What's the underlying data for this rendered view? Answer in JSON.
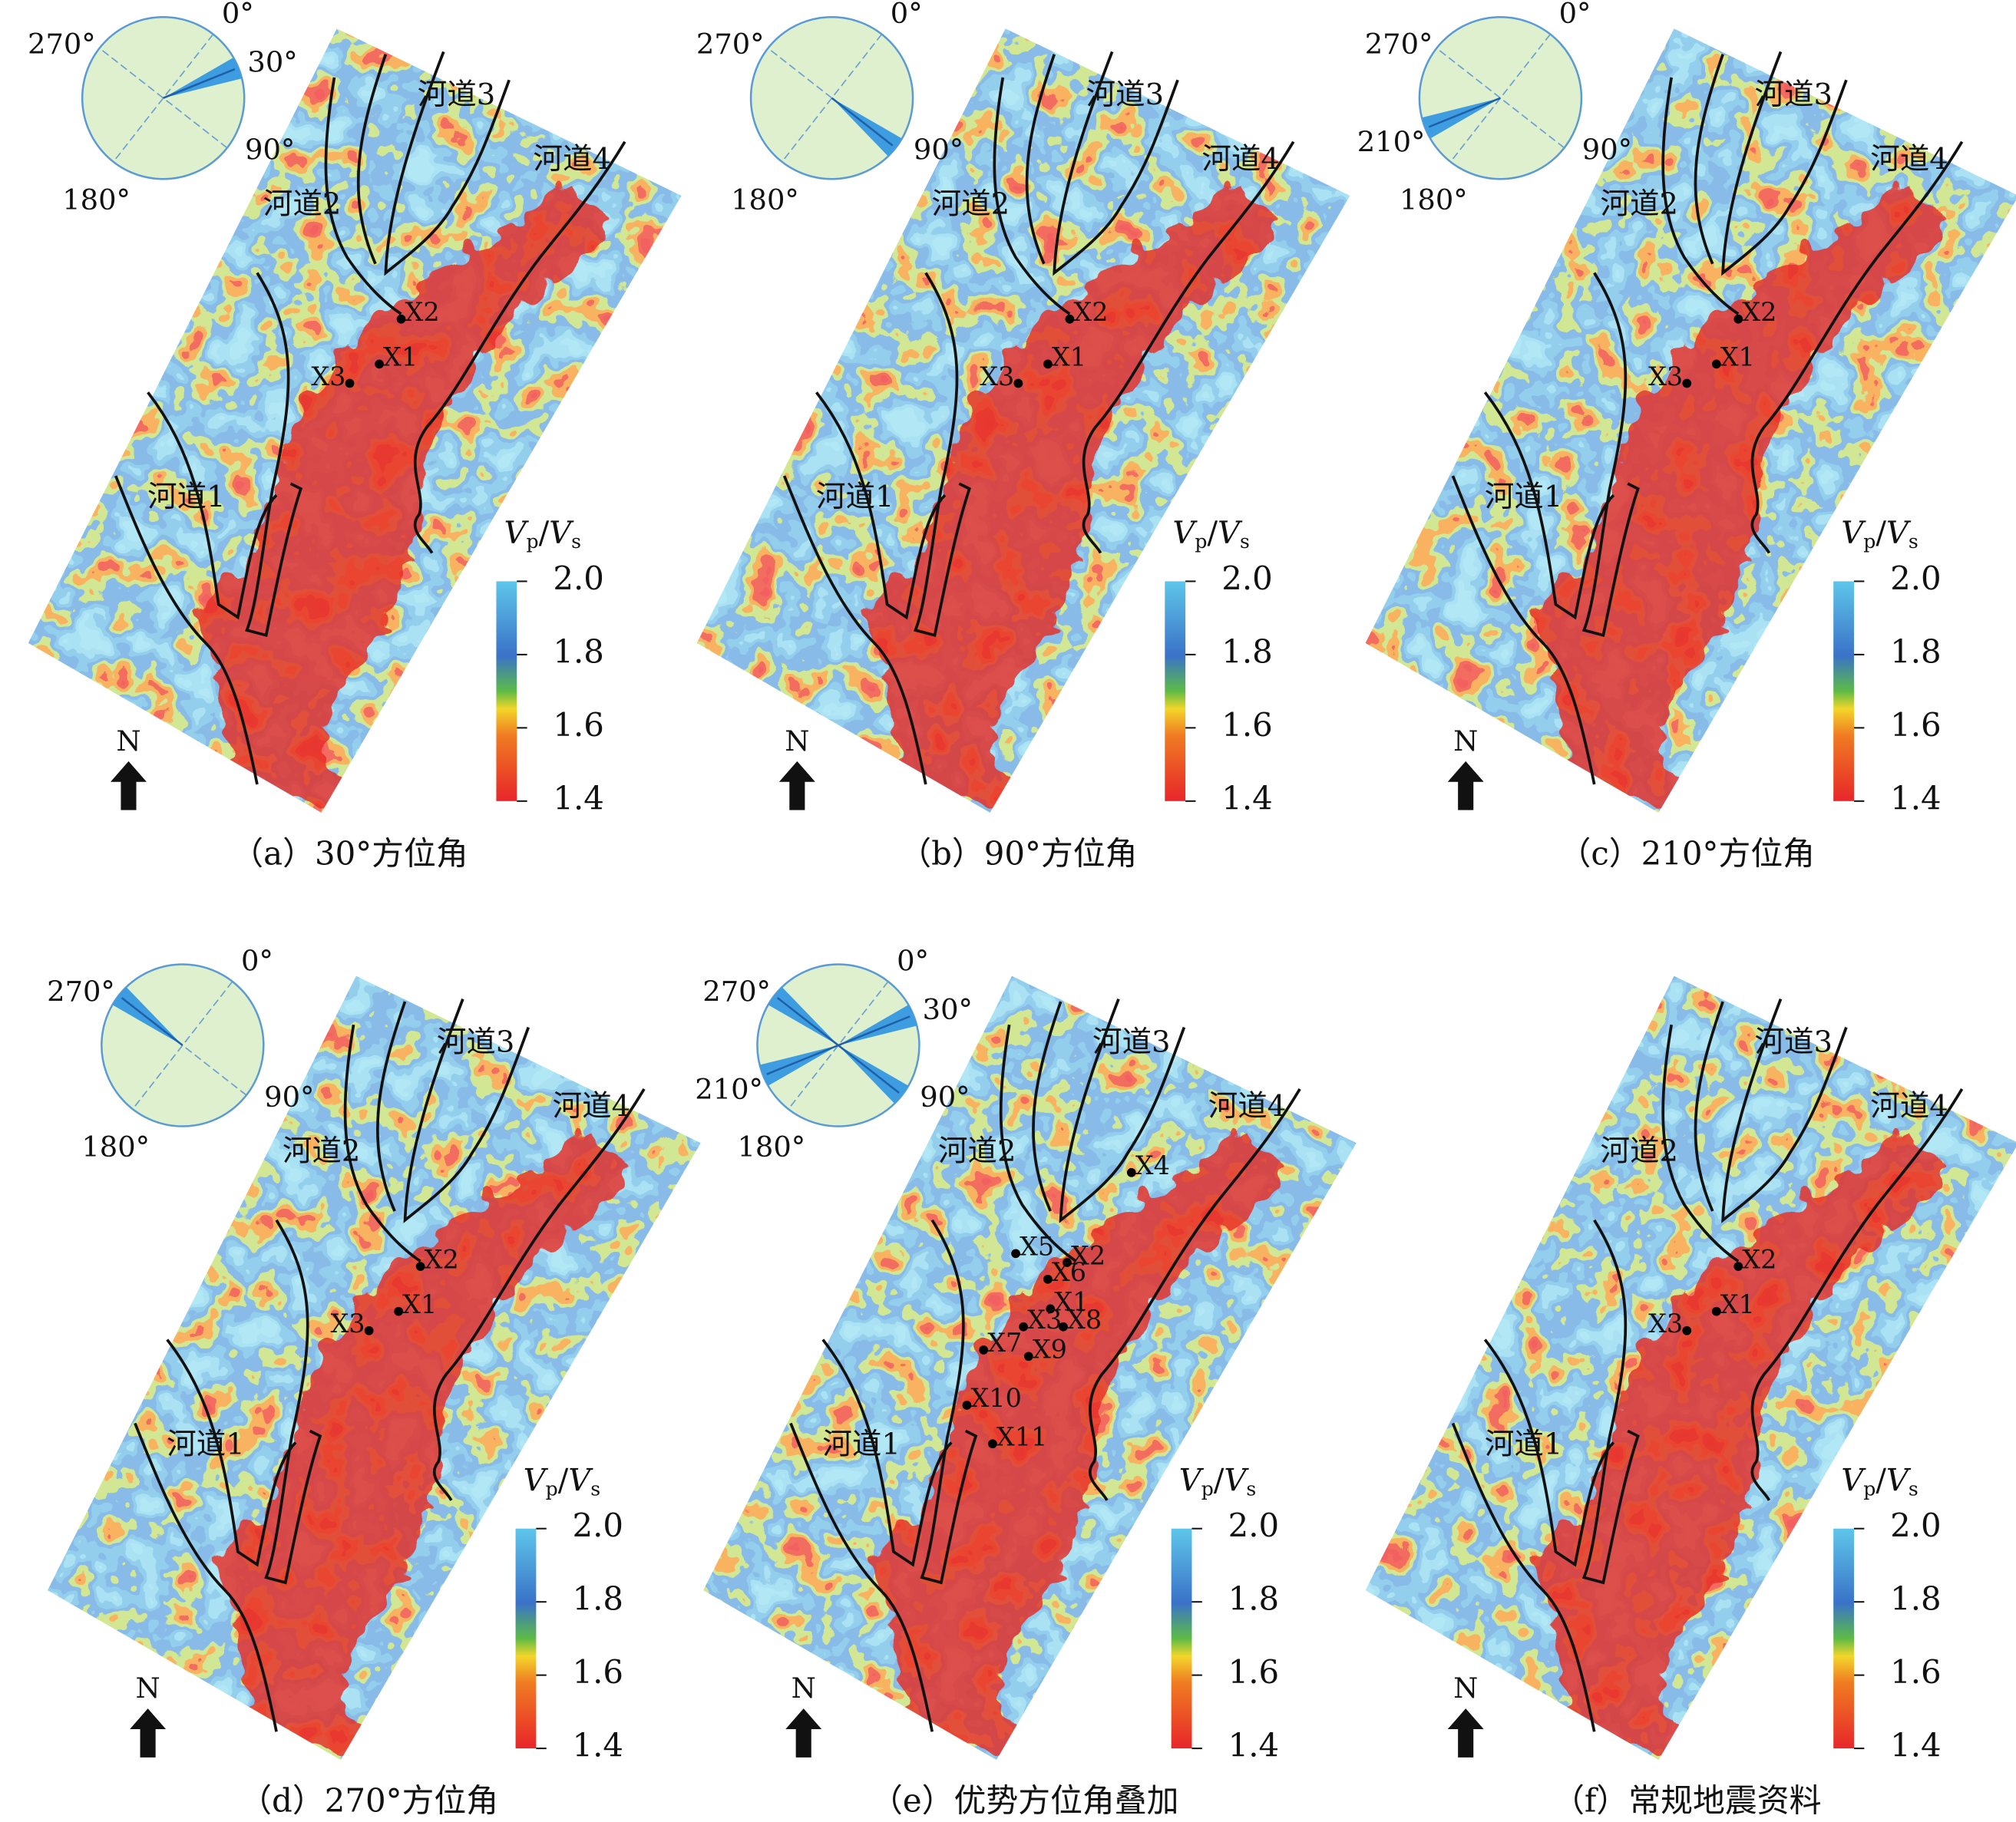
{
  "north": "N",
  "compass_labels": [
    "0°",
    "90°",
    "180°",
    "270°"
  ],
  "channels": [
    "河道1",
    "河道2",
    "河道3",
    "河道4"
  ],
  "colorbar": {
    "title": [
      "V",
      "p",
      "/",
      "V",
      "s"
    ],
    "ticks": [
      {
        "value": 2.0,
        "label": "2.0"
      },
      {
        "value": 1.8,
        "label": "1.8"
      },
      {
        "value": 1.6,
        "label": "1.6"
      },
      {
        "value": 1.4,
        "label": "1.4"
      }
    ]
  },
  "panels": [
    {
      "caption": "（a）30°方位角",
      "azimuths": [
        30
      ],
      "azimuth_labels": [
        "30°"
      ],
      "wells": [
        "X2",
        "X1",
        "X3"
      ]
    },
    {
      "caption": "（b）90°方位角",
      "azimuths": [
        90
      ],
      "azimuth_labels": [],
      "wells": [
        "X2",
        "X1",
        "X3"
      ]
    },
    {
      "caption": "（c）210°方位角",
      "azimuths": [
        210
      ],
      "azimuth_labels": [
        "210°"
      ],
      "wells": [
        "X2",
        "X1",
        "X3"
      ]
    },
    {
      "caption": "（d）270°方位角",
      "azimuths": [
        270
      ],
      "azimuth_labels": [],
      "wells": [
        "X2",
        "X1",
        "X3"
      ]
    },
    {
      "caption": "（e）优势方位角叠加",
      "azimuths": [
        30,
        90,
        210,
        270
      ],
      "azimuth_labels": [
        "30°",
        "210°"
      ],
      "wells": [
        "X4",
        "X5",
        "X2",
        "X6",
        "X1",
        "X3",
        "X8",
        "X7",
        "X9",
        "X10",
        "X11"
      ]
    },
    {
      "caption": "（f）常规地震资料",
      "azimuths": [],
      "azimuth_labels": [],
      "wells": [
        "X2",
        "X1",
        "X3"
      ]
    }
  ]
}
